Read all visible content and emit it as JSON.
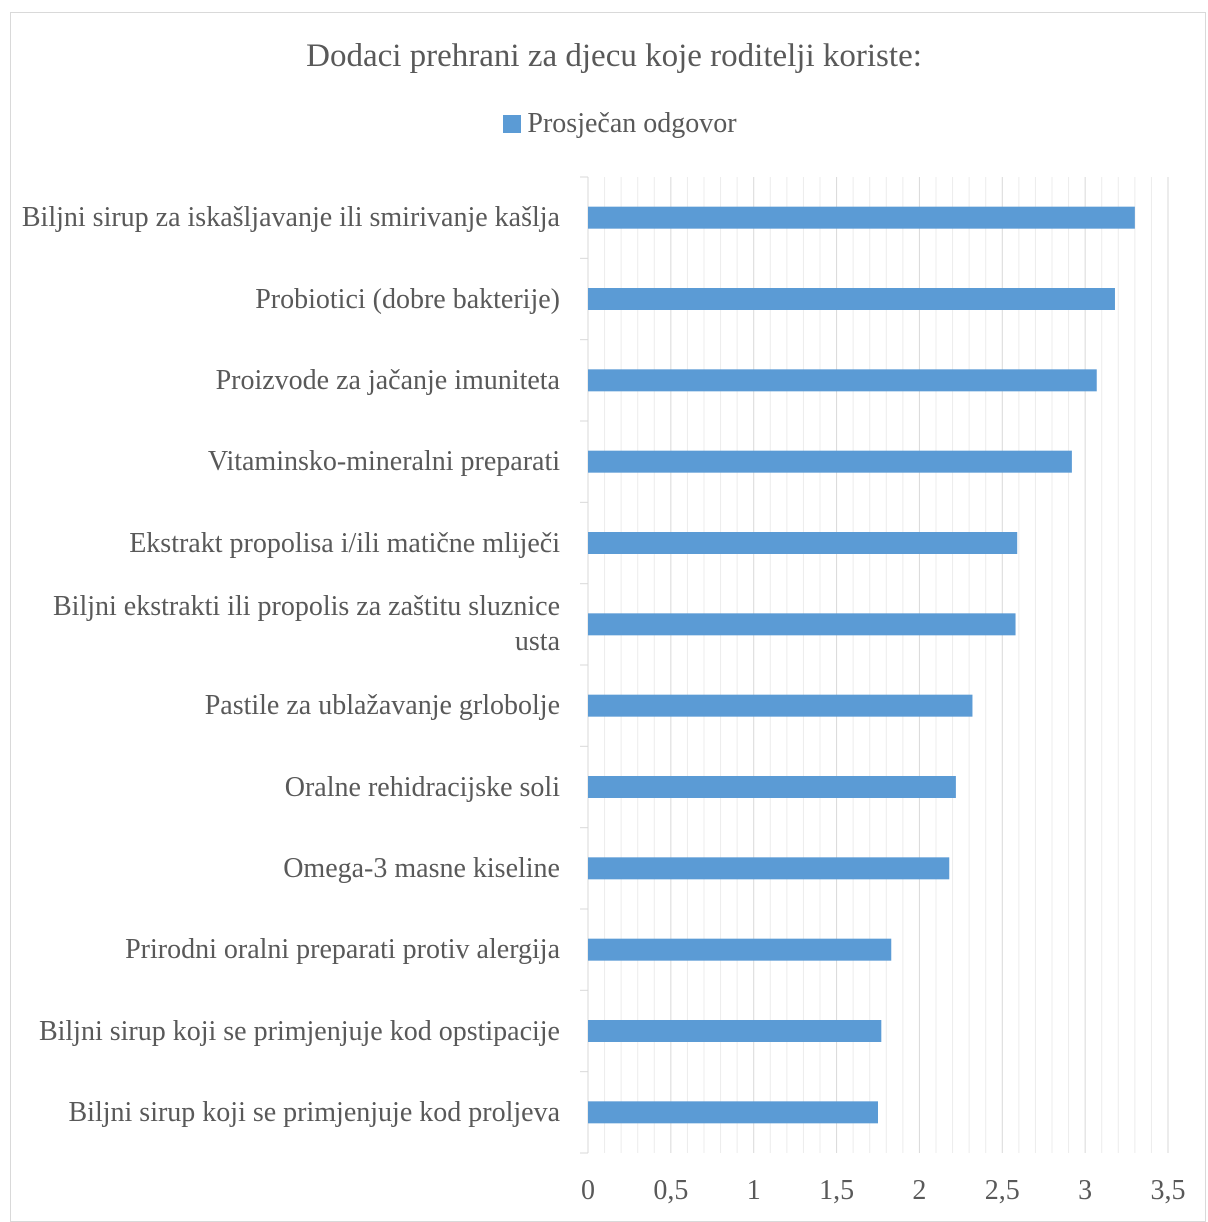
{
  "chart_data": {
    "type": "bar",
    "orientation": "horizontal",
    "title": "Dodaci prehrani za djecu koje roditelji koriste:",
    "legend_position": "top",
    "series": [
      {
        "name": "Prosječan odgovor",
        "color": "#5b9bd5",
        "values": [
          3.3,
          3.18,
          3.07,
          2.92,
          2.59,
          2.58,
          2.32,
          2.22,
          2.18,
          1.83,
          1.77,
          1.75
        ]
      }
    ],
    "categories": [
      "Biljni sirup za iskašljavanje ili smirivanje kašlja",
      "Probiotici (dobre bakterije)",
      "Proizvode za jačanje imuniteta",
      "Vitaminsko-mineralni preparati",
      "Ekstrakt propolisa i/ili matične mliječi",
      "Biljni ekstrakti ili propolis za zaštitu sluznice usta",
      "Pastile za ublažavanje grlobolje",
      "Oralne rehidracijske soli",
      "Omega-3 masne kiseline",
      "Prirodni oralni preparati protiv alergija",
      "Biljni sirup koji se primjenjuje kod opstipacije",
      "Biljni sirup koji se primjenjuje kod proljeva"
    ],
    "xlim": [
      0,
      3.5
    ],
    "x_ticks": [
      "0",
      "0,5",
      "1",
      "1,5",
      "2",
      "2,5",
      "3",
      "3,5"
    ],
    "grid": "vertical major and minor"
  }
}
